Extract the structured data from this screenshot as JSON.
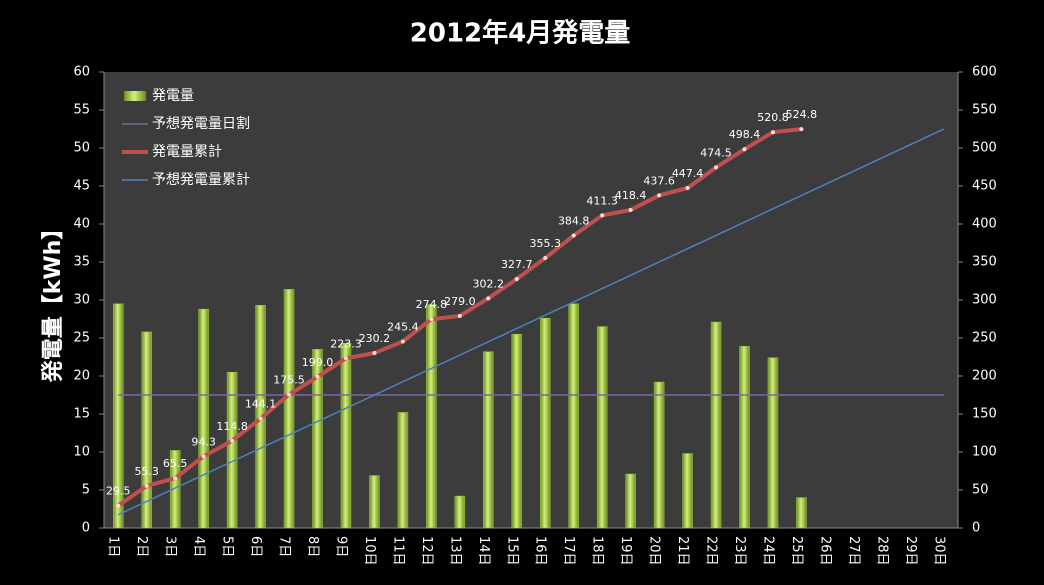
{
  "chart_data": {
    "type": "bar",
    "title": "2012年4月発電量",
    "y_label": "発電量【kWh】",
    "categories": [
      "1日",
      "2日",
      "3日",
      "4日",
      "5日",
      "6日",
      "7日",
      "8日",
      "9日",
      "10日",
      "11日",
      "12日",
      "13日",
      "14日",
      "15日",
      "16日",
      "17日",
      "18日",
      "19日",
      "20日",
      "21日",
      "22日",
      "23日",
      "24日",
      "25日",
      "26日",
      "27日",
      "28日",
      "29日",
      "30日"
    ],
    "ylim": [
      0,
      60
    ],
    "yticks": [
      0,
      5,
      10,
      15,
      20,
      25,
      30,
      35,
      40,
      45,
      50,
      55,
      60
    ],
    "y2lim": [
      0,
      600
    ],
    "y2ticks": [
      0,
      50,
      100,
      150,
      200,
      250,
      300,
      350,
      400,
      450,
      500,
      550,
      600
    ],
    "grid": false,
    "legend": "upper left",
    "series": [
      {
        "name": "発電量",
        "type": "bar",
        "color": "#9acd32",
        "values": [
          29.5,
          25.8,
          10.2,
          28.8,
          20.5,
          29.3,
          31.4,
          23.5,
          24.3,
          6.9,
          15.2,
          29.4,
          4.2,
          23.2,
          25.5,
          27.6,
          29.5,
          26.5,
          7.1,
          19.2,
          9.8,
          27.1,
          23.9,
          22.4,
          4.0,
          null,
          null,
          null,
          null,
          null
        ]
      },
      {
        "name": "予想発電量日割",
        "type": "line",
        "color": "#8064a2",
        "values": [
          17.5,
          17.5,
          17.5,
          17.5,
          17.5,
          17.5,
          17.5,
          17.5,
          17.5,
          17.5,
          17.5,
          17.5,
          17.5,
          17.5,
          17.5,
          17.5,
          17.5,
          17.5,
          17.5,
          17.5,
          17.5,
          17.5,
          17.5,
          17.5,
          17.5,
          17.5,
          17.5,
          17.5,
          17.5,
          17.5
        ]
      },
      {
        "name": "発電量累計",
        "type": "line",
        "axis": "y2",
        "color": "#c0504d",
        "values": [
          29.5,
          55.3,
          65.5,
          94.3,
          114.8,
          144.1,
          175.5,
          199.0,
          223.3,
          230.2,
          245.4,
          274.8,
          279.0,
          302.2,
          327.7,
          355.3,
          384.8,
          411.3,
          418.4,
          437.6,
          447.4,
          474.5,
          498.4,
          520.8,
          524.8,
          null,
          null,
          null,
          null,
          null
        ],
        "value_labels": [
          "29.5",
          "55.3",
          "65.5",
          "94.3",
          "114.8",
          "144.1",
          "175.5",
          "199.0",
          "223.3",
          "230.2",
          "245.4",
          "274.8",
          "279.0",
          "302.2",
          "327.7",
          "355.3",
          "384.8",
          "411.3",
          "418.4",
          "437.6",
          "447.4",
          "474.5",
          "498.4",
          "520.8",
          "524.8",
          null,
          null,
          null,
          null,
          null
        ]
      },
      {
        "name": "予想発電量累計",
        "type": "line",
        "axis": "y2",
        "color": "#4f81bd",
        "values": [
          17.5,
          35,
          52.5,
          70,
          87.5,
          105,
          122.5,
          140,
          157.5,
          175,
          192.5,
          210,
          227.5,
          245,
          262.5,
          280,
          297.5,
          315,
          332.5,
          350,
          367.5,
          385,
          402.5,
          420,
          437.5,
          455,
          472.5,
          490,
          507.5,
          525
        ]
      }
    ]
  }
}
